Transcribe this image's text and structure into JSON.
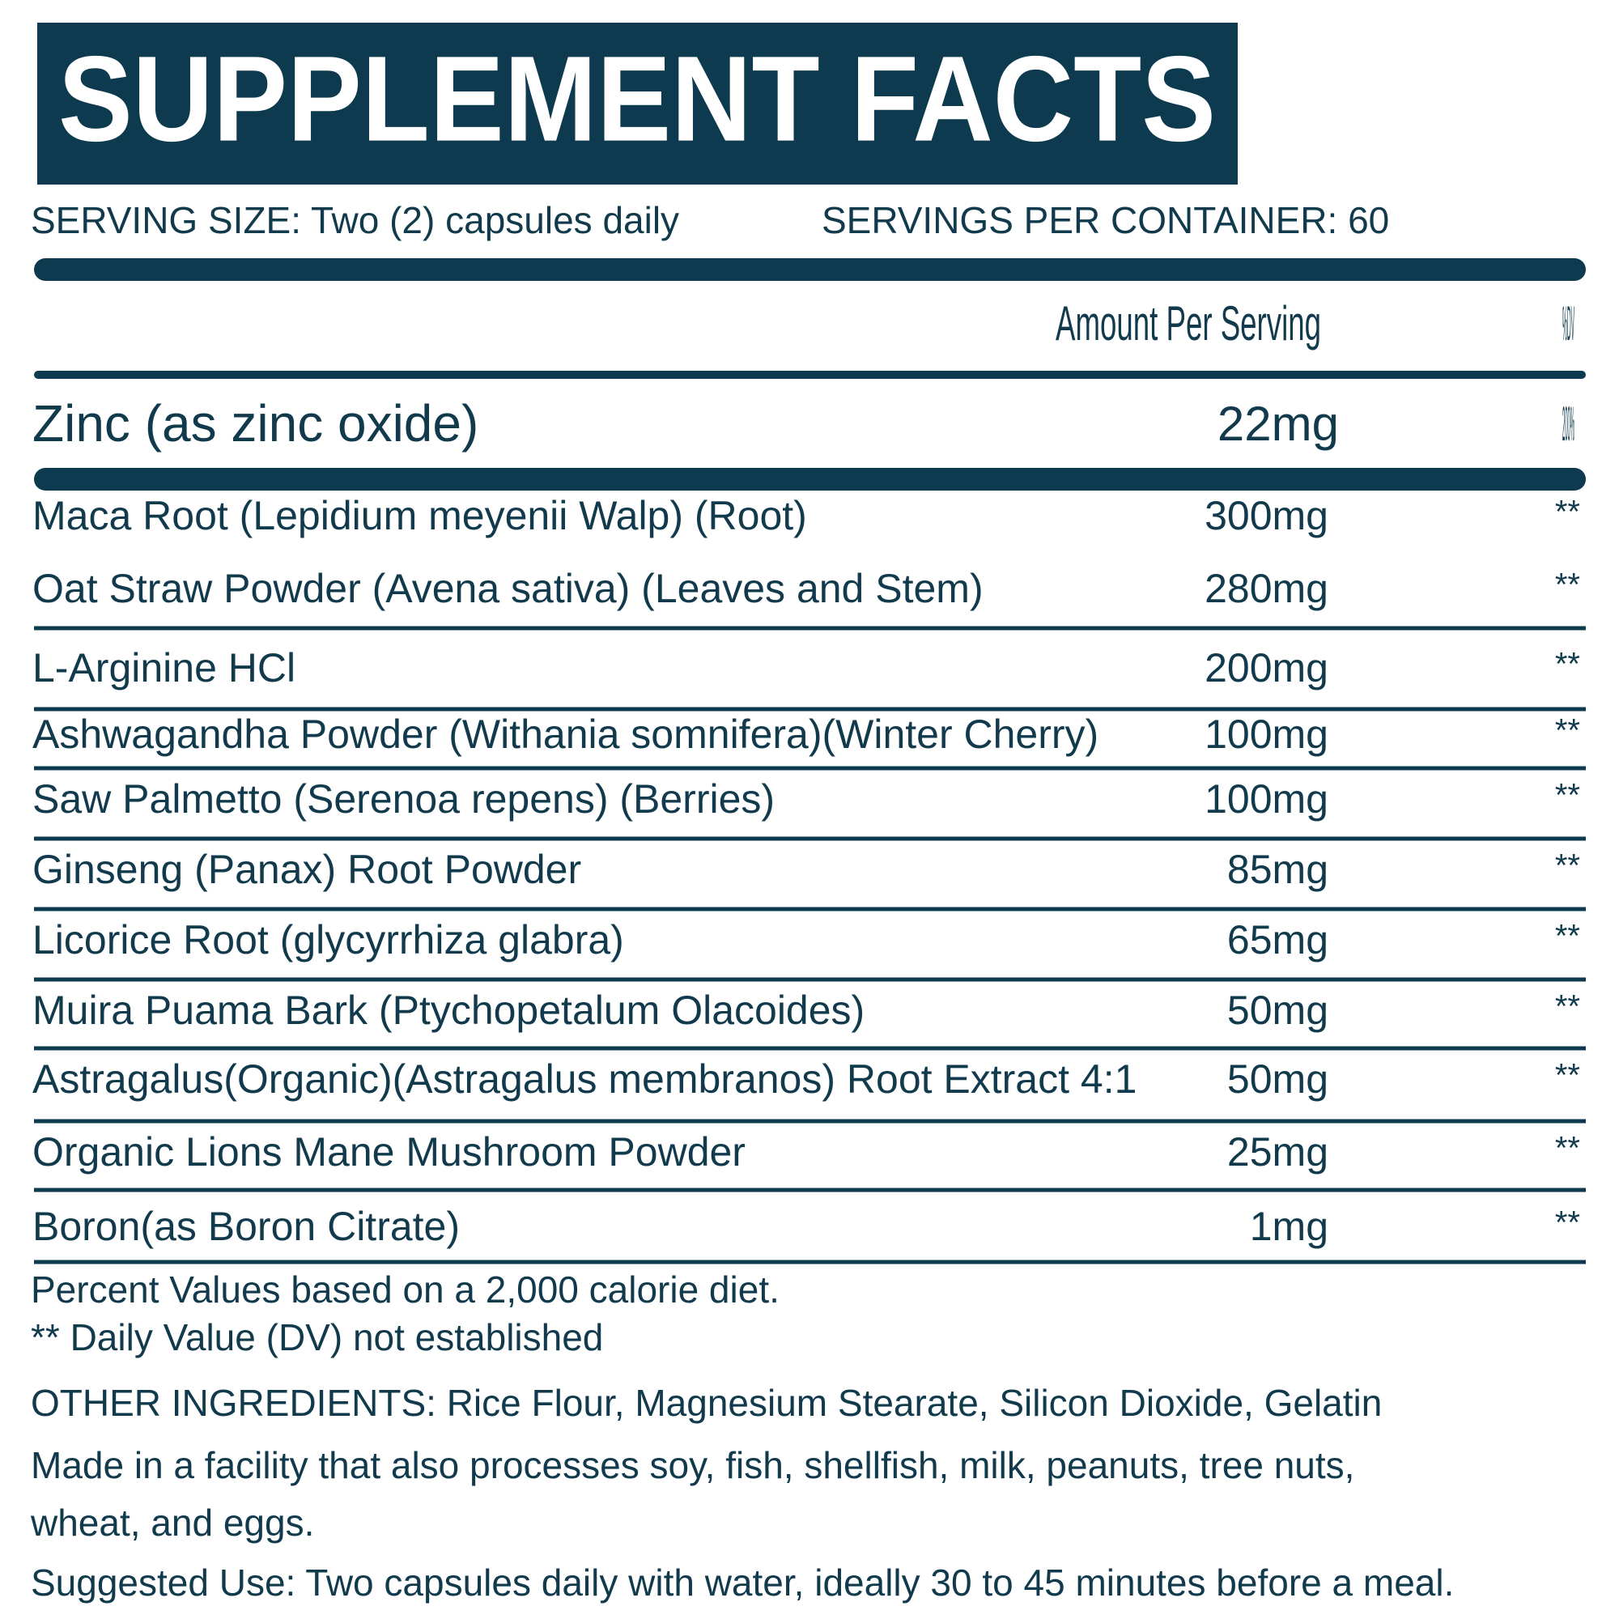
{
  "header": {
    "title": "SUPPLEMENT FACTS",
    "serving_size": "SERVING SIZE: Two (2) capsules daily",
    "servings_per_container": "SERVINGS PER CONTAINER: 60"
  },
  "table": {
    "columns": [
      "Amount Per Serving",
      "%DV"
    ],
    "highlight": {
      "name": "Zinc (as zinc oxide)",
      "amount": "22mg",
      "dv": "200%"
    },
    "rows": [
      [
        "Maca Root (Lepidium meyenii Walp) (Root)",
        "300mg",
        "**"
      ],
      [
        "Oat Straw Powder (Avena sativa) (Leaves and Stem)",
        "280mg",
        "**"
      ],
      [
        "L-Arginine HCl",
        "200mg",
        "**"
      ],
      [
        "Ashwagandha Powder (Withania somnifera)(Winter Cherry)",
        "100mg",
        "**"
      ],
      [
        "Saw Palmetto (Serenoa repens) (Berries)",
        "100mg",
        "**"
      ],
      [
        "Ginseng (Panax) Root Powder",
        "85mg",
        "**"
      ],
      [
        "Licorice Root (glycyrrhiza glabra)",
        "65mg",
        "**"
      ],
      [
        "Muira Puama Bark (Ptychopetalum Olacoides)",
        "50mg",
        "**"
      ],
      [
        "Astragalus(Organic)(Astragalus membranos) Root Extract 4:1",
        "50mg",
        "**"
      ],
      [
        "Organic Lions Mane Mushroom Powder",
        "25mg",
        "**"
      ],
      [
        "Boron(as Boron Citrate)",
        "1mg",
        "**"
      ]
    ]
  },
  "footnotes": [
    "Percent Values based on a 2,000 calorie diet.",
    "** Daily Value (DV) not established"
  ],
  "other_ingredients": "OTHER INGREDIENTS: Rice Flour, Magnesium Stearate, Silicon Dioxide, Gelatin",
  "facility_note": [
    "Made in a facility that also processes soy, fish, shellfish, milk, peanuts, tree nuts,",
    "wheat, and eggs."
  ],
  "suggested_use": "Suggested Use: Two capsules daily with water, ideally 30 to 45 minutes before a meal."
}
